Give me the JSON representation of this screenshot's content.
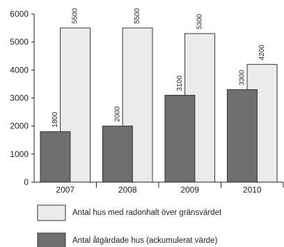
{
  "chart_data": {
    "type": "bar",
    "categories": [
      "2007",
      "2008",
      "2009",
      "2010"
    ],
    "series": [
      {
        "name": "Antal hus med radonhalt över gränsvärdet",
        "values": [
          5500,
          5500,
          5300,
          4200
        ],
        "color": "#ebebeb"
      },
      {
        "name": "Antal åtgärdade hus (ackumulerat värde)",
        "values": [
          1800,
          2000,
          3100,
          3300
        ],
        "color": "#6e6e6e"
      }
    ],
    "data_labels": {
      "front": [
        "1800",
        "2000",
        "3100",
        "3300"
      ],
      "back": [
        "5500",
        "5500",
        "5300",
        "4200"
      ]
    },
    "ylim": [
      0,
      6000
    ],
    "yticks": [
      "0",
      "1000",
      "2000",
      "3000",
      "4000",
      "5000",
      "6000"
    ],
    "grid": false,
    "legend_position": "bottom"
  }
}
